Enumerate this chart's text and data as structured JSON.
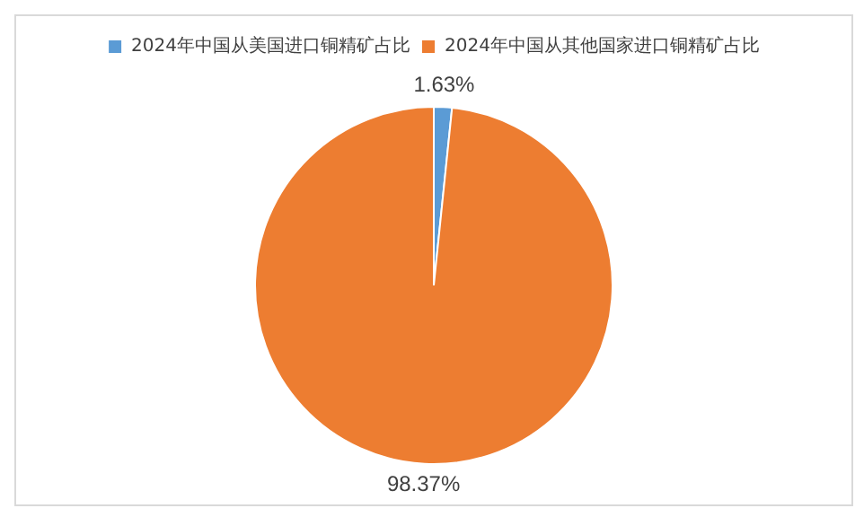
{
  "chart_data": {
    "type": "pie",
    "categories": [
      "2024年中国从美国进口铜精矿占比",
      "2024年中国从其他国家进口铜精矿占比"
    ],
    "values": [
      1.63,
      98.37
    ],
    "colors": [
      "#5b9bd5",
      "#ed7d31"
    ],
    "value_labels": [
      "1.63%",
      "98.37%"
    ],
    "legend": "top"
  }
}
